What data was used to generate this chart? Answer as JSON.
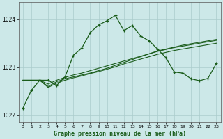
{
  "title": "Graphe pression niveau de la mer (hPa)",
  "background_color": "#cce8e8",
  "grid_color": "#aacccc",
  "line_color": "#1a5c1a",
  "xlim": [
    -0.5,
    23.5
  ],
  "ylim": [
    1021.85,
    1024.35
  ],
  "yticks": [
    1022,
    1023,
    1024
  ],
  "xticks": [
    0,
    1,
    2,
    3,
    4,
    5,
    6,
    7,
    8,
    9,
    10,
    11,
    12,
    13,
    14,
    15,
    16,
    17,
    18,
    19,
    20,
    21,
    22,
    23
  ],
  "series1_x": [
    0,
    1,
    2,
    3,
    4,
    5,
    6,
    7,
    8,
    9,
    10,
    11,
    12,
    13,
    14,
    15,
    16,
    17,
    18,
    19,
    20,
    21,
    22,
    23
  ],
  "series1_y": [
    1022.15,
    1022.52,
    1022.73,
    1022.73,
    1022.62,
    1022.8,
    1023.25,
    1023.4,
    1023.72,
    1023.88,
    1023.97,
    1024.08,
    1023.76,
    1023.87,
    1023.65,
    1023.55,
    1023.38,
    1023.2,
    1022.9,
    1022.88,
    1022.76,
    1022.72,
    1022.77,
    1023.08
  ],
  "series2_x": [
    0,
    1,
    2,
    3,
    4,
    5,
    6,
    7,
    8,
    9,
    10,
    11,
    12,
    13,
    14,
    15,
    16,
    17,
    18,
    19,
    20,
    21,
    22,
    23
  ],
  "series2_y": [
    1022.73,
    1022.73,
    1022.73,
    1022.6,
    1022.7,
    1022.76,
    1022.8,
    1022.84,
    1022.88,
    1022.93,
    1022.98,
    1023.04,
    1023.1,
    1023.16,
    1023.22,
    1023.28,
    1023.34,
    1023.38,
    1023.42,
    1023.46,
    1023.49,
    1023.52,
    1023.55,
    1023.58
  ],
  "series3_x": [
    0,
    1,
    2,
    3,
    4,
    5,
    6,
    7,
    8,
    9,
    10,
    11,
    12,
    13,
    14,
    15,
    16,
    17,
    18,
    19,
    20,
    21,
    22,
    23
  ],
  "series3_y": [
    1022.73,
    1022.73,
    1022.73,
    1022.65,
    1022.73,
    1022.79,
    1022.84,
    1022.88,
    1022.93,
    1022.98,
    1023.03,
    1023.08,
    1023.13,
    1023.18,
    1023.23,
    1023.28,
    1023.33,
    1023.37,
    1023.41,
    1023.44,
    1023.47,
    1023.5,
    1023.53,
    1023.56
  ],
  "series4_x": [
    0,
    1,
    2,
    3,
    4,
    5,
    6,
    7,
    8,
    9,
    10,
    11,
    12,
    13,
    14,
    15,
    16,
    17,
    18,
    19,
    20,
    21,
    22,
    23
  ],
  "series4_y": [
    1022.73,
    1022.73,
    1022.73,
    1022.58,
    1022.67,
    1022.73,
    1022.78,
    1022.82,
    1022.87,
    1022.91,
    1022.96,
    1023.01,
    1023.07,
    1023.12,
    1023.17,
    1023.22,
    1023.27,
    1023.31,
    1023.35,
    1023.38,
    1023.41,
    1023.44,
    1023.47,
    1023.5
  ]
}
